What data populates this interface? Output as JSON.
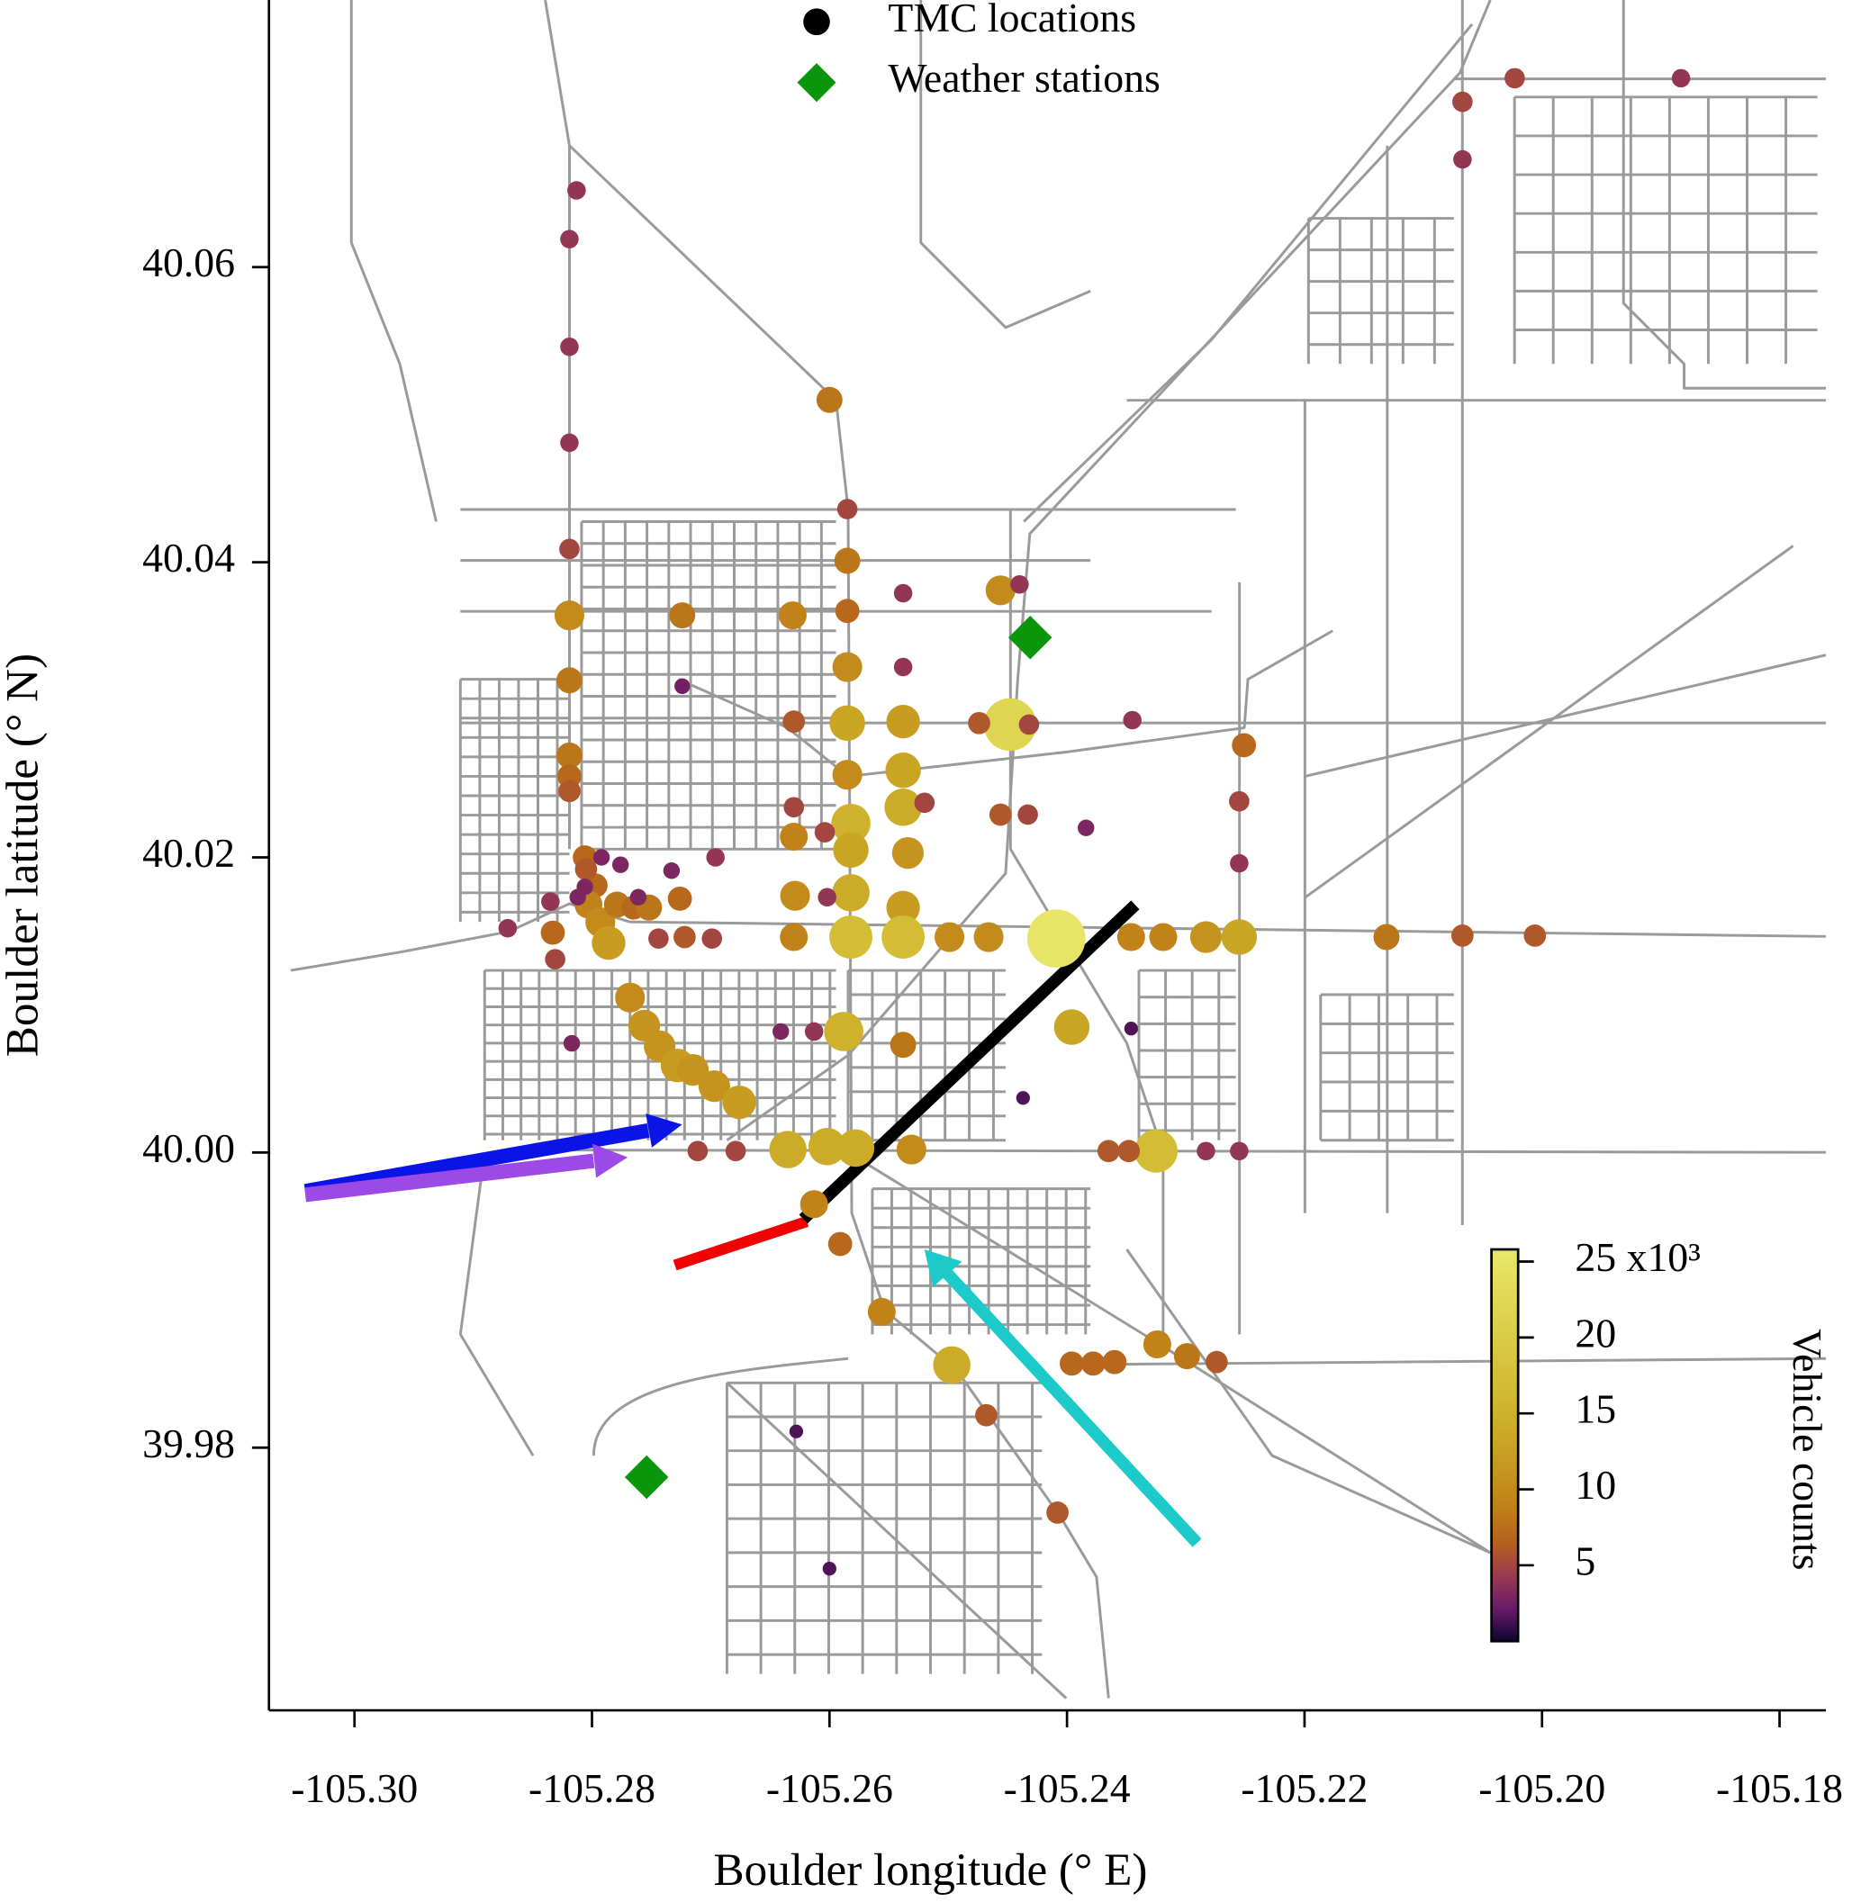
{
  "chart_data": {
    "type": "scatter",
    "xlabel": "Boulder longitude (° E)",
    "ylabel": "Boulder latitude (° N)",
    "xlim": [
      -105.3072,
      -105.1761
    ],
    "ylim": [
      39.9622,
      40.0781
    ],
    "xticks": [
      {
        "value": -105.3,
        "label": "-105.30"
      },
      {
        "value": -105.28,
        "label": "-105.28"
      },
      {
        "value": -105.26,
        "label": "-105.26"
      },
      {
        "value": -105.24,
        "label": "-105.24"
      },
      {
        "value": -105.22,
        "label": "-105.22"
      },
      {
        "value": -105.2,
        "label": "-105.20"
      },
      {
        "value": -105.18,
        "label": "-105.18"
      }
    ],
    "yticks": [
      39.98,
      {
        "value": 40,
        "label": "40.00"
      },
      40.02,
      40.04,
      40.06
    ],
    "legend": "top",
    "series": [
      {
        "name": "TMC locations",
        "color": "#000000",
        "marker": "circle",
        "x": [
          -105.2813,
          -105.2819,
          -105.2819,
          -105.2819,
          -105.2819,
          -105.2819,
          -105.2819,
          -105.2819,
          -105.2819,
          -105.2819,
          -105.2067,
          -105.2023,
          -105.1883,
          -105.2067,
          -105.26,
          -105.2585,
          -105.2585,
          -105.2585,
          -105.2585,
          -105.2585,
          -105.2585,
          -105.2582,
          -105.2582,
          -105.2582,
          -105.2582,
          -105.2588,
          -105.2602,
          -105.2635,
          -105.2578,
          -105.2613,
          -105.2591,
          -105.2556,
          -105.2497,
          -105.2468,
          -105.2408,
          -105.2631,
          -105.2724,
          -105.2538,
          -105.2538,
          -105.2538,
          -105.2538,
          -105.2538,
          -105.2534,
          -105.2538,
          -105.2538,
          -105.252,
          -105.2538,
          -105.2531,
          -105.263,
          -105.263,
          -105.263,
          -105.2629,
          -105.263,
          -105.2604,
          -105.2602,
          -105.2641,
          -105.2613,
          -105.2456,
          -105.244,
          -105.2448,
          -105.2474,
          -105.2432,
          -105.2345,
          -105.2456,
          -105.2433,
          -105.2384,
          -105.2499,
          -105.2466,
          -105.2409,
          -105.2396,
          -105.2346,
          -105.2319,
          -105.2283,
          -105.2255,
          -105.2131,
          -105.2067,
          -105.2006,
          -105.2251,
          -105.2255,
          -105.2255,
          -105.2255,
          -105.2283,
          -105.2325,
          -105.2348,
          -105.2365,
          -105.2324,
          -105.2299,
          -105.2274,
          -105.236,
          -105.2378,
          -105.2396,
          -105.2346,
          -105.2437,
          -105.2724,
          -105.2628,
          -105.26,
          -105.2806,
          -105.2797,
          -105.2805,
          -105.2803,
          -105.2793,
          -105.2786,
          -105.2779,
          -105.2765,
          -105.2752,
          -105.2792,
          -105.2776,
          -105.2761,
          -105.2812,
          -105.2806,
          -105.2835,
          -105.2833,
          -105.2831,
          -105.2871,
          -105.2733,
          -105.2726,
          -105.2696,
          -105.2744,
          -105.2722,
          -105.2699,
          -105.2817,
          -105.2768,
          -105.2756,
          -105.2743,
          -105.2728,
          -105.2715,
          -105.2697,
          -105.2676,
          -105.2711,
          -105.2679
        ],
        "y": [
          40.0652,
          40.0619,
          40.0546,
          40.0481,
          40.0409,
          40.0364,
          40.032,
          40.0269,
          40.0255,
          40.0245,
          40.0712,
          40.0728,
          40.0728,
          40.0673,
          40.051,
          40.0436,
          40.0401,
          40.0367,
          40.0329,
          40.0291,
          40.0256,
          40.0223,
          40.0205,
          40.0176,
          40.0146,
          40.0082,
          40.0004,
          40.0002,
          40.0003,
          39.9965,
          39.9938,
          39.9892,
          39.9856,
          39.9822,
          39.9756,
          40.0364,
          40.0364,
          40.0379,
          40.0329,
          40.0292,
          40.0259,
          40.0234,
          40.0203,
          40.0166,
          40.0146,
          40.0237,
          40.0073,
          40.0002,
          40.0292,
          40.0234,
          40.0214,
          40.0174,
          40.0146,
          40.0217,
          40.0173,
          40.0082,
          40.0082,
          40.0381,
          40.0385,
          40.029,
          40.0291,
          40.029,
          40.0293,
          40.0229,
          40.0229,
          40.022,
          40.0146,
          40.0146,
          40.0145,
          40.0085,
          40.0146,
          40.0146,
          40.0146,
          40.0146,
          40.0146,
          40.0147,
          40.0147,
          40.0276,
          40.0238,
          40.0196,
          40.0001,
          40.0001,
          40.0001,
          40.0001,
          40.0001,
          39.987,
          39.9862,
          39.9858,
          39.9858,
          39.9857,
          39.9857,
          40.0084,
          40.0037,
          40.0316,
          39.9811,
          39.9718,
          40.02,
          40.0181,
          40.0192,
          40.0168,
          40.0156,
          40.0142,
          40.0168,
          40.0166,
          40.0166,
          40.02,
          40.0195,
          40.0173,
          40.0173,
          40.018,
          40.017,
          40.0149,
          40.0131,
          40.0152,
          40.0191,
          40.0172,
          40.02,
          40.0145,
          40.0146,
          40.0145,
          40.0074,
          40.0105,
          40.0086,
          40.0072,
          40.0059,
          40.0056,
          40.0045,
          40.0034,
          40.0001,
          40.0001
        ],
        "values": [
          4,
          4,
          4,
          4,
          5,
          10,
          8,
          8,
          7,
          6,
          5,
          5,
          4,
          4,
          8,
          5,
          8,
          7,
          10,
          13,
          10,
          15,
          13,
          14,
          17,
          15,
          14,
          14,
          14,
          9,
          7,
          9,
          14,
          6,
          6,
          9,
          8,
          4,
          4,
          12,
          13,
          14,
          11,
          12,
          17,
          5,
          8,
          10,
          6,
          5,
          9,
          10,
          9,
          5,
          4,
          3,
          4,
          10,
          4,
          22,
          6,
          5,
          4,
          6,
          5,
          3,
          10,
          10,
          25,
          13,
          9,
          9,
          11,
          13,
          8,
          6,
          6,
          7,
          5,
          4,
          4,
          4,
          17,
          6,
          6,
          9,
          8,
          6,
          7,
          7,
          7,
          1.5,
          1.5,
          2.5,
          1.5,
          1.5,
          7,
          7,
          6,
          9,
          10,
          12,
          8,
          7,
          8,
          3,
          3,
          3,
          3,
          3,
          4,
          7,
          5,
          4,
          3,
          7,
          4,
          5,
          6,
          5,
          3,
          10,
          11,
          11,
          12,
          11,
          11,
          12,
          5,
          5
        ]
      },
      {
        "name": "Weather stations",
        "color": "#0a960a",
        "marker": "diamond",
        "x": [
          -105.2431,
          -105.2754
        ],
        "y": [
          40.0349,
          39.978
        ]
      }
    ],
    "colorbar": {
      "label": "Vehicle counts",
      "lim": [
        0,
        25.8
      ],
      "ticks": [
        5,
        10,
        15,
        20,
        {
          "value": 25,
          "label": "25 x10³"
        }
      ],
      "colors": [
        "#0d0530",
        "#6a1a6a",
        "#9a3a50",
        "#b5601f",
        "#bf7e18",
        "#c4921e",
        "#c9a424",
        "#ceb22c",
        "#d3be36",
        "#d8c942",
        "#ddd34e",
        "#e3dd5c",
        "#ebe86e"
      ]
    }
  }
}
